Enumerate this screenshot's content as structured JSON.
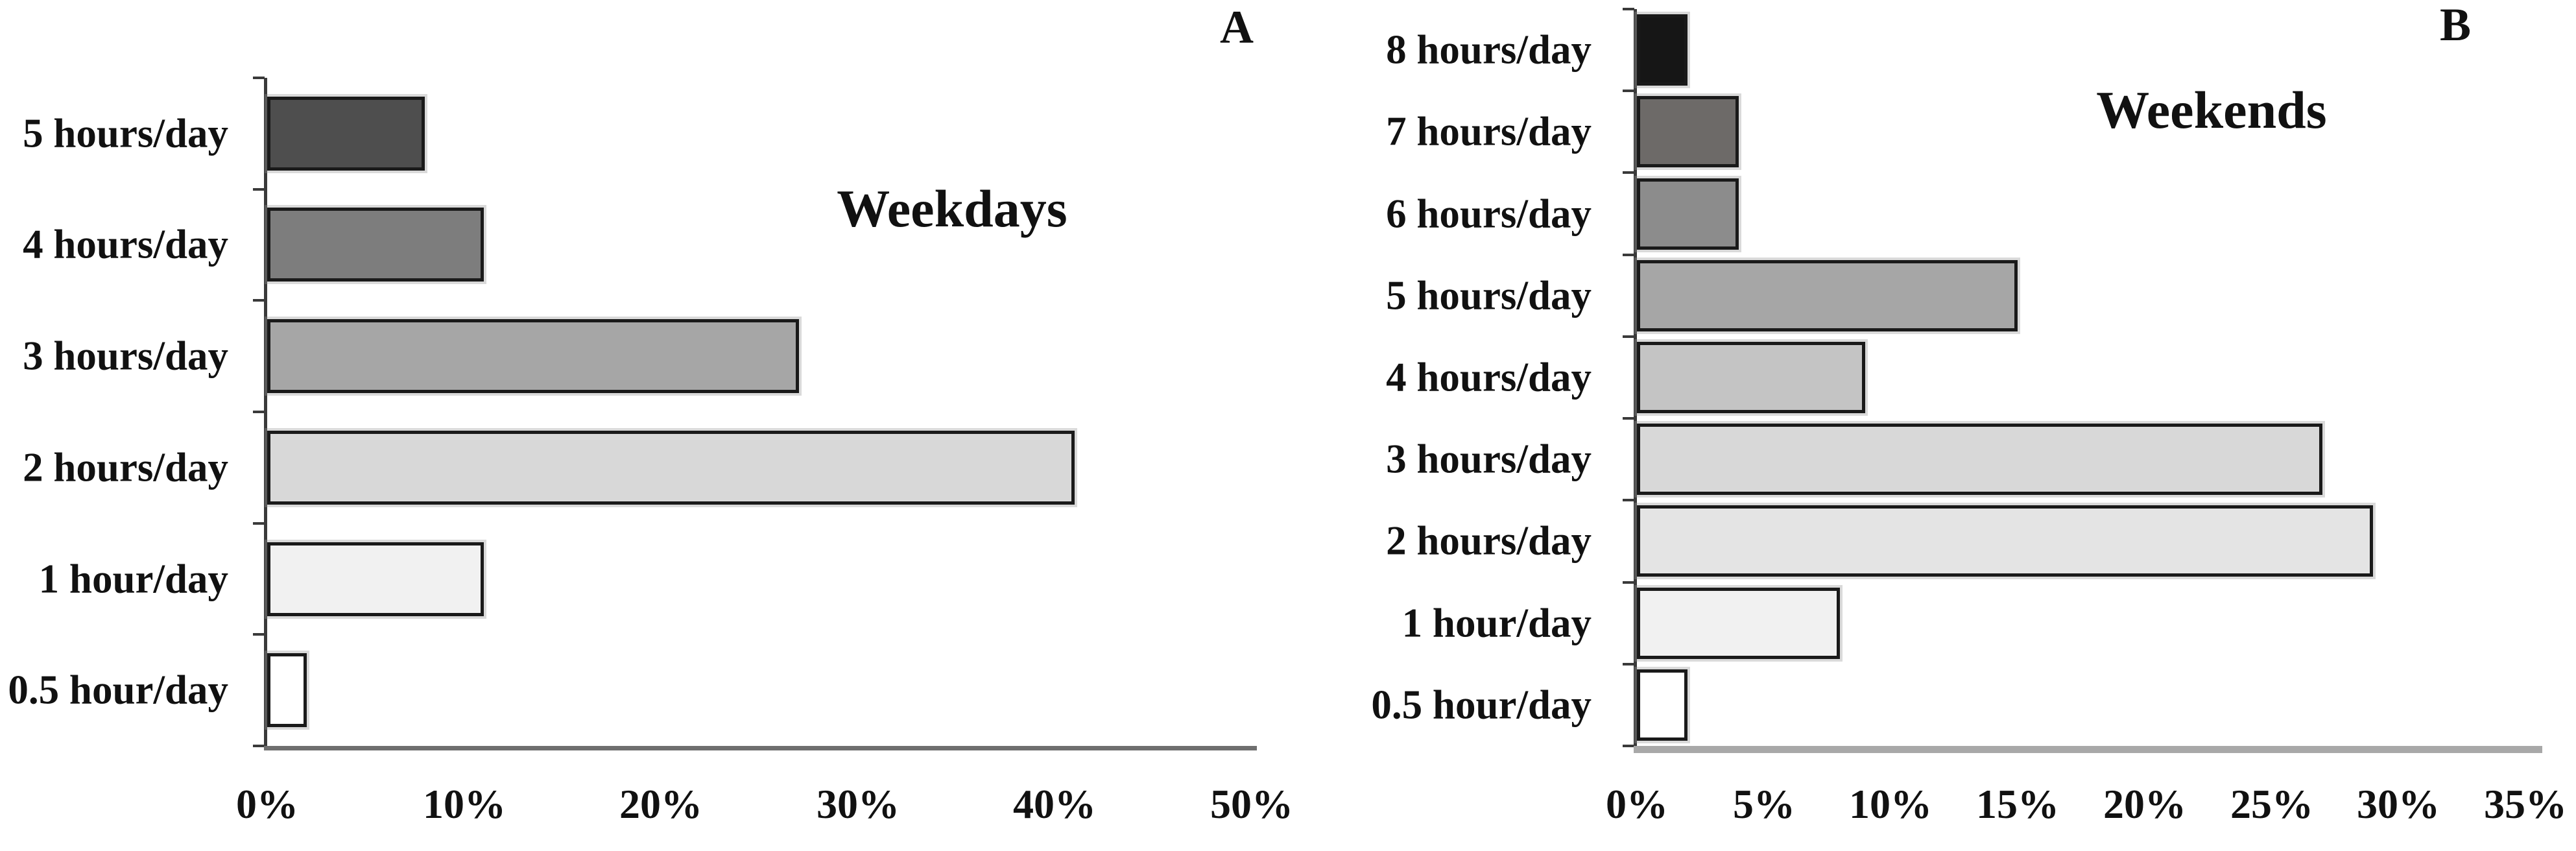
{
  "figure": {
    "background": "#ffffff",
    "axis_color": "#3a3a3a",
    "panel_a_baseline_color": "#6f6f6f",
    "panel_b_baseline_color": "#a8a8a8",
    "bar_border_color": "#1a1a1a"
  },
  "chart_data": [
    {
      "type": "bar",
      "orientation": "horizontal",
      "panel_label": "A",
      "title": "Weekdays",
      "categories": [
        "5 hours/day",
        "4 hours/day",
        "3 hours/day",
        "2 hours/day",
        "1 hour/day",
        "0.5 hour/day"
      ],
      "values": [
        8,
        11,
        27,
        41,
        11,
        2
      ],
      "bar_colors": [
        "#4e4e4e",
        "#7d7d7d",
        "#a6a6a6",
        "#d8d8d8",
        "#f1f1f1",
        "#ffffff"
      ],
      "xlabel": "",
      "ylabel": "",
      "xlim": [
        0,
        50
      ],
      "x_tick_labels": [
        "0%",
        "10%",
        "20%",
        "30%",
        "40%",
        "50%"
      ],
      "grid": false,
      "legend": false
    },
    {
      "type": "bar",
      "orientation": "horizontal",
      "panel_label": "B",
      "title": "Weekends",
      "categories": [
        "8 hours/day",
        "7 hours/day",
        "6 hours/day",
        "5 hours/day",
        "4 hours/day",
        "3 hours/day",
        "2 hours/day",
        "1 hour/day",
        "0.5 hour/day"
      ],
      "values": [
        2,
        4,
        4,
        15,
        9,
        27,
        29,
        8,
        2
      ],
      "bar_colors": [
        "#161616",
        "#6d6a68",
        "#8c8c8c",
        "#a6a6a6",
        "#c4c4c4",
        "#d8d8d8",
        "#e4e4e4",
        "#f1f1f1",
        "#ffffff"
      ],
      "xlabel": "",
      "ylabel": "",
      "xlim": [
        0,
        35
      ],
      "x_tick_labels": [
        "0%",
        "5%",
        "10%",
        "15%",
        "20%",
        "25%",
        "30%",
        "35%"
      ],
      "grid": false,
      "legend": false
    }
  ]
}
